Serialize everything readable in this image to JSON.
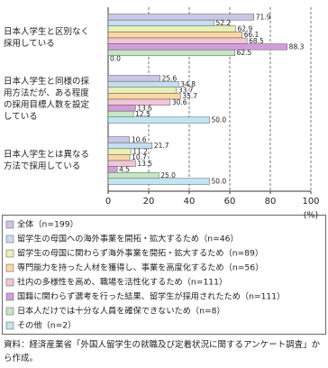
{
  "chart_data": {
    "type": "hbar",
    "categories": [
      "日本人学生と区別なく\n採用している",
      "日本人学生と同様の採\n用方法だが、ある程度\nの採用目標人数を設定\nしている",
      "日本人学生とは異なる\n方法で採用している"
    ],
    "series": [
      {
        "name": "全体（n=199）",
        "color": "#c9c6e6",
        "values": [
          71.9,
          25.6,
          10.6
        ],
        "value_labels": [
          "71.9",
          "25.6",
          "10.6"
        ]
      },
      {
        "name": "留学生の母国への海外事業を開拓・拡大するため（n=46）",
        "color": "#c6def0",
        "values": [
          52.2,
          34.8,
          21.7
        ],
        "value_labels": [
          "52.2",
          "34.8",
          "21.7"
        ]
      },
      {
        "name": "留学生の母国に関わらず海外事業を開拓・拡大するため（n=89）",
        "color": "#e9f0b4",
        "values": [
          62.9,
          33.7,
          11.2
        ],
        "value_labels": [
          "62.9",
          "33.7",
          "11.2"
        ]
      },
      {
        "name": "専門能力を持った人材を獲得し、事業を高度化するため（n=56）",
        "color": "#fbd7a6",
        "values": [
          66.1,
          35.7,
          10.7
        ],
        "value_labels": [
          "66.1",
          "35.7",
          "10.7"
        ]
      },
      {
        "name": "社内の多様性を高め、職場を活性化するため（n=111）",
        "color": "#f2c6d6",
        "values": [
          68.5,
          30.6,
          13.5
        ],
        "value_labels": [
          "68.5",
          "30.6",
          "13.5"
        ]
      },
      {
        "name": "国籍に関わらず選考を行った結果、留学生が採用されたため（n=111）",
        "color": "#d39ddd",
        "values": [
          88.3,
          13.5,
          4.5
        ],
        "value_labels": [
          "88.3",
          "13.5",
          "4.5"
        ]
      },
      {
        "name": "日本人だけでは十分な人員を確保できないため（n=8）",
        "color": "#c6e6c4",
        "values": [
          62.5,
          12.5,
          25.0
        ],
        "value_labels": [
          "62.5",
          "12.5",
          "25.0"
        ]
      },
      {
        "name": "その他（n=2）",
        "color": "#bfe7f1",
        "values": [
          0.0,
          50.0,
          50.0
        ],
        "value_labels": [
          "0.0",
          "50.0",
          "50.0"
        ]
      }
    ],
    "xlim": [
      0,
      100
    ],
    "xticks": [
      0,
      20,
      40,
      60,
      80,
      100
    ],
    "x_unit": "(%)",
    "grid": true,
    "source": "資料：経済産業省「外国人留学生の就職及び定着状況に関するアンケート調査」から作成。"
  }
}
